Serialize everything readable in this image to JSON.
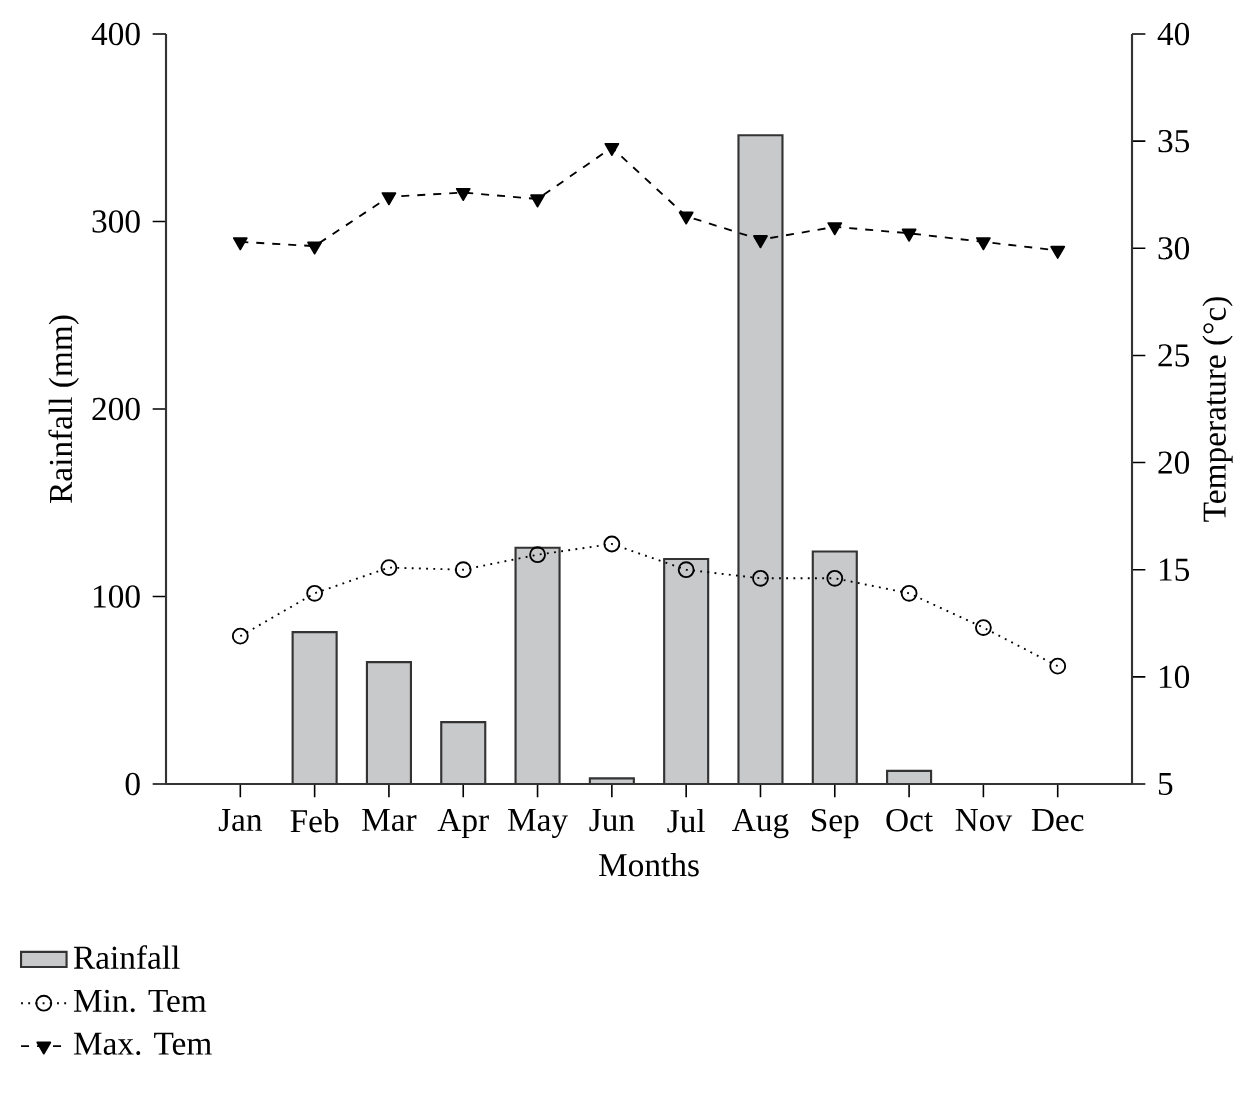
{
  "chart_data": {
    "type": "bar",
    "xlabel": "Months",
    "ylabel": "Rainfall (mm)",
    "y2label": "Temperature (°c)",
    "categories": [
      "Jan",
      "Feb",
      "Mar",
      "Apr",
      "May",
      "Jun",
      "Jul",
      "Aug",
      "Sep",
      "Oct",
      "Nov",
      "Dec"
    ],
    "ylim": [
      0,
      400
    ],
    "yticks": [
      0,
      100,
      200,
      300,
      400
    ],
    "y2lim": [
      5,
      40
    ],
    "y2ticks": [
      5,
      10,
      15,
      20,
      25,
      30,
      35,
      40
    ],
    "legend": "bottom left",
    "series": [
      {
        "name": "Rainfall",
        "color": "#c8c9cb",
        "values": [
          null,
          81,
          65,
          33,
          126,
          3,
          120,
          346,
          124,
          7,
          null,
          null
        ]
      },
      {
        "name": "Min. Tem",
        "type": "line",
        "axis": "y2",
        "color": "#000000",
        "marker": "circle",
        "line_style": "dotted",
        "values": [
          11.9,
          13.9,
          15.1,
          15.0,
          15.7,
          16.2,
          15.0,
          14.6,
          14.6,
          13.9,
          12.3,
          10.5
        ]
      },
      {
        "name": "Max. Tem",
        "type": "line",
        "axis": "y2",
        "color": "#000000",
        "marker": "triangle",
        "line_style": "dashed",
        "values": [
          30.3,
          30.1,
          32.4,
          32.6,
          32.3,
          34.7,
          31.5,
          30.4,
          31.0,
          30.7,
          30.3,
          29.9
        ]
      }
    ]
  }
}
